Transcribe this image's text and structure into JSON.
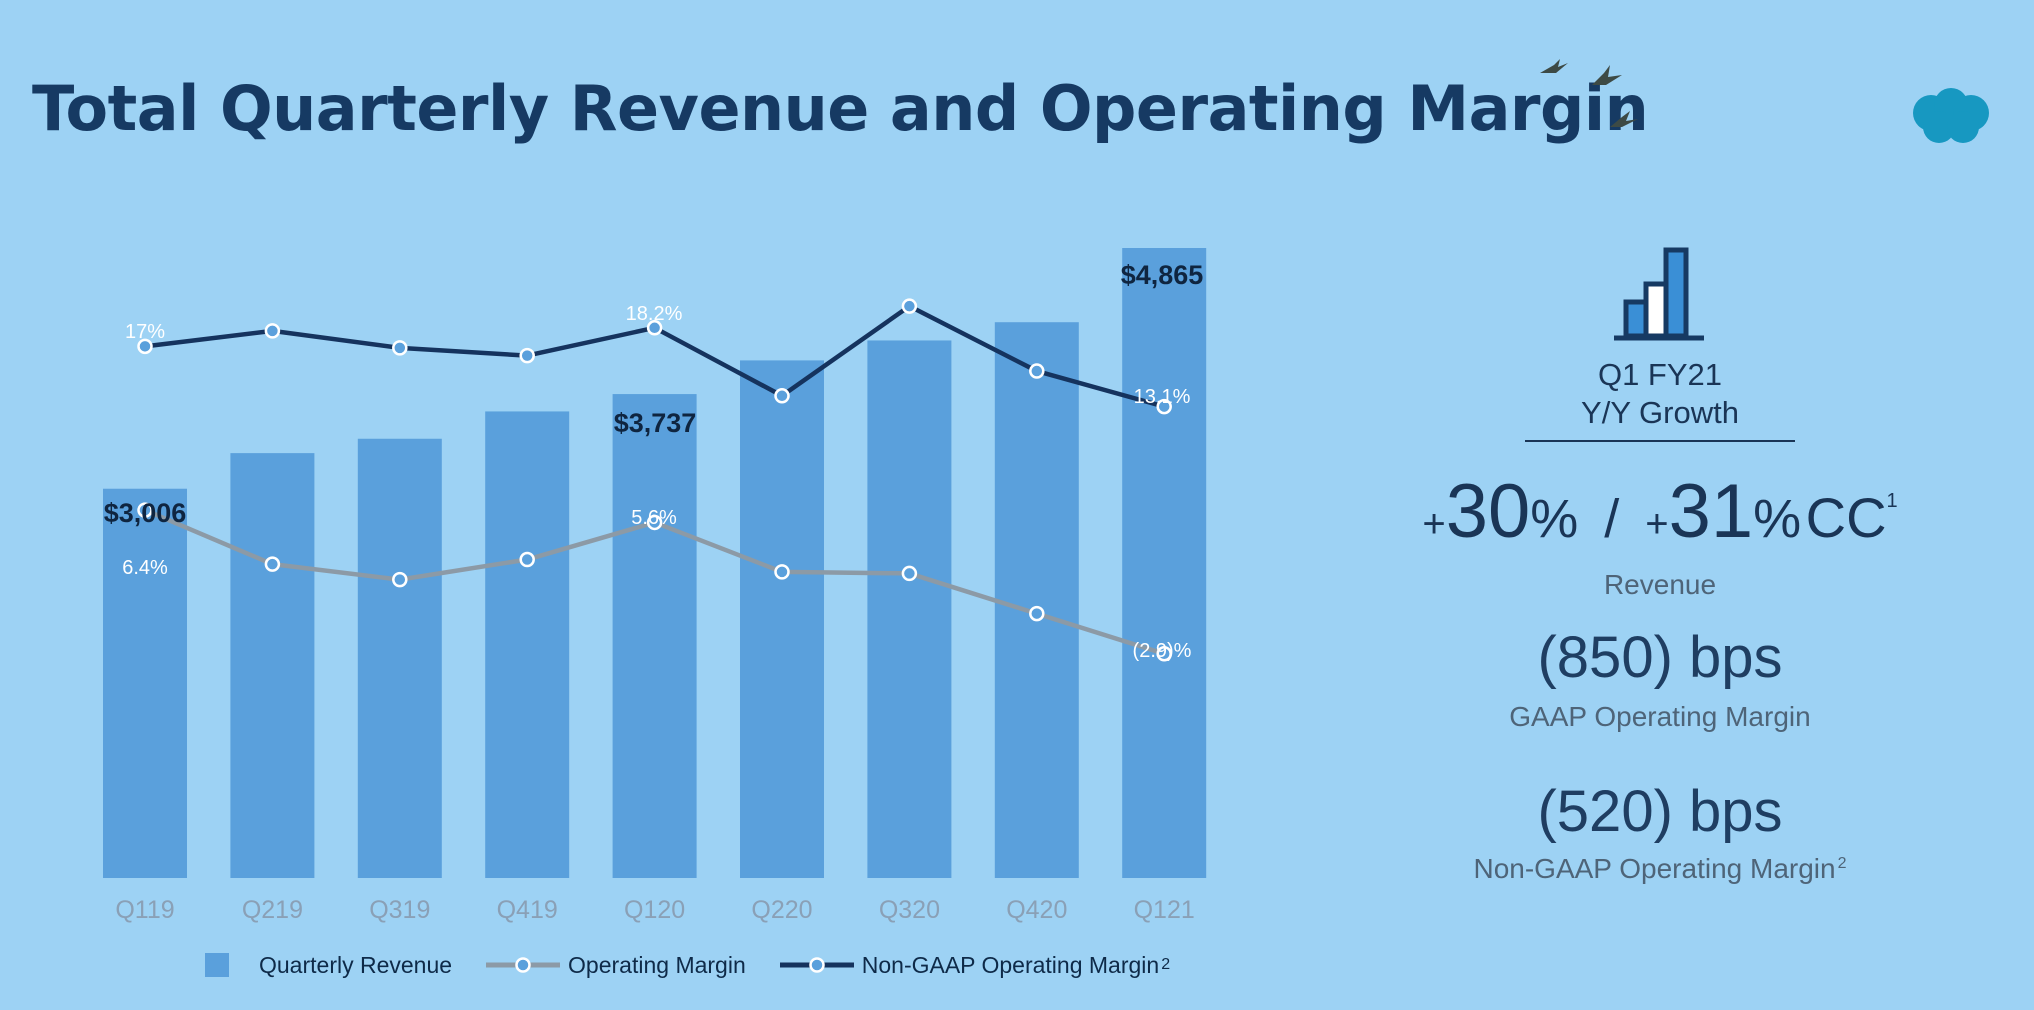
{
  "slide": {
    "title": "Total Quarterly Revenue and Operating Margin",
    "brand": "salesforce",
    "colors": {
      "background": "#9dd2f4",
      "bar": "#5aa0dc",
      "operating_margin_line": "#8c9aa6",
      "non_gaap_line": "#15335e",
      "title": "#163a63"
    }
  },
  "legend": {
    "bar_label": "Quarterly Revenue",
    "op_label": "Operating Margin",
    "nongaap_label": "Non-GAAP Operating Margin",
    "nongaap_sup": "2"
  },
  "chart_data": {
    "type": "bar",
    "categories": [
      "Q119",
      "Q219",
      "Q319",
      "Q419",
      "Q120",
      "Q220",
      "Q320",
      "Q420",
      "Q121"
    ],
    "series": [
      {
        "name": "Quarterly Revenue",
        "type": "bar",
        "unit": "$M",
        "values": [
          3006,
          3281,
          3392,
          3603,
          3737,
          3997,
          4151,
          4292,
          4865
        ],
        "labels": [
          "$3,006",
          "",
          "",
          "",
          "$3,737",
          "",
          "",
          "",
          "$4,865"
        ]
      },
      {
        "name": "Operating Margin",
        "type": "line",
        "unit": "%",
        "values": [
          6.4,
          2.9,
          1.9,
          3.2,
          5.6,
          2.4,
          2.3,
          -0.3,
          -2.9
        ],
        "labels": [
          "6.4%",
          "",
          "",
          "",
          "5.6%",
          "",
          "",
          "",
          "(2.9)%"
        ]
      },
      {
        "name": "Non-GAAP Operating Margin",
        "type": "line",
        "unit": "%",
        "values": [
          17.0,
          18.0,
          16.9,
          16.4,
          18.2,
          13.8,
          19.6,
          15.4,
          13.1
        ],
        "labels": [
          "17%",
          "",
          "",
          "",
          "18.2%",
          "",
          "",
          "",
          "13.1%"
        ]
      }
    ],
    "ylim_revenue": [
      0,
      4865
    ],
    "ylim_margin": [
      -9,
      20
    ],
    "grid": false,
    "legend_position": "bottom"
  },
  "sidebar": {
    "period_line1": "Q1 FY21",
    "period_line2": "Y/Y Growth",
    "growth_sign": "+",
    "growth_value": "30",
    "growth_pct": "%",
    "growth_slash": "/",
    "growth_cc_sign": "+",
    "growth_cc_value": "31",
    "growth_cc_pct": "%",
    "growth_cc_label": "CC",
    "growth_cc_sup": "1",
    "revenue_caption": "Revenue",
    "gaap_metric": "(850) bps",
    "gaap_caption": "GAAP Operating Margin",
    "nongaap_metric": "(520) bps",
    "nongaap_caption": "Non-GAAP Operating Margin",
    "nongaap_caption_sup": "2"
  }
}
